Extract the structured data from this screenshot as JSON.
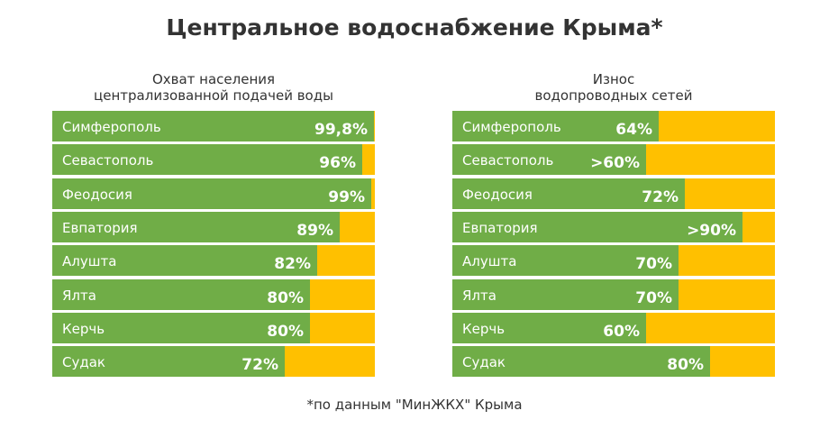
{
  "title": "Центральное водоснабжение Крыма*",
  "footnote": "*по данным \"МинЖКХ\" Крыма",
  "colors": {
    "fill": "#70AD47",
    "remainder": "#FFC000"
  },
  "chart_data": [
    {
      "type": "bar",
      "orientation": "horizontal",
      "stacked_to_100": true,
      "title_lines": [
        "Охват населения",
        "централизованной подачей воды"
      ],
      "categories": [
        "Симферополь",
        "Севастополь",
        "Феодосия",
        "Евпатория",
        "Алушта",
        "Ялта",
        "Керчь",
        "Судак"
      ],
      "values": [
        99.8,
        96,
        99,
        89,
        82,
        80,
        80,
        72
      ],
      "labels": [
        "99,8%",
        "96%",
        "99%",
        "89%",
        "82%",
        "80%",
        "80%",
        "72%"
      ],
      "xlim": [
        0,
        100
      ]
    },
    {
      "type": "bar",
      "orientation": "horizontal",
      "stacked_to_100": true,
      "title_lines": [
        "Износ",
        "водопроводных сетей"
      ],
      "categories": [
        "Симферополь",
        "Севастополь",
        "Феодосия",
        "Евпатория",
        "Алушта",
        "Ялта",
        "Керчь",
        "Судак"
      ],
      "values": [
        64,
        60,
        72,
        90,
        70,
        70,
        60,
        80
      ],
      "labels": [
        "64%",
        ">60%",
        "72%",
        ">90%",
        "70%",
        "70%",
        "60%",
        "80%"
      ],
      "xlim": [
        0,
        100
      ]
    }
  ]
}
